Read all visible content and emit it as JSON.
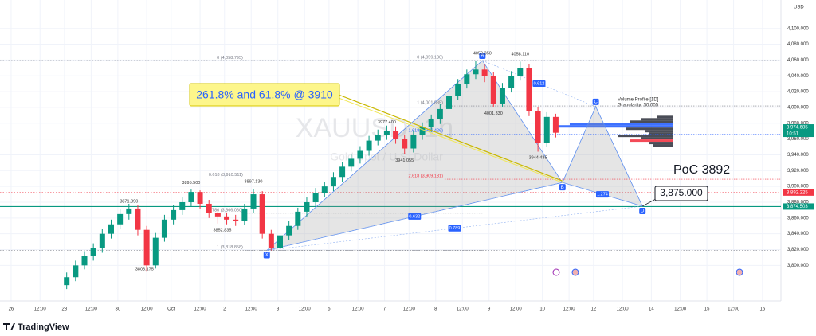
{
  "header": {
    "currency": "USD",
    "brand": "TradingView",
    "watermark_symbol": "XAUUSD, 1h",
    "watermark_name": "Gold Spot / U.S. Dollar"
  },
  "chart_data": {
    "type": "candlestick",
    "grid": true,
    "up_color": "#089981",
    "down_color": "#f23645",
    "xlim": [
      0,
      351.3
    ],
    "ylim": [
      3755,
      4136
    ],
    "xticks": [
      {
        "value": 5,
        "label": "26"
      },
      {
        "value": 18,
        "label": "12:00"
      },
      {
        "value": 29,
        "label": "28"
      },
      {
        "value": 41,
        "label": "12:00"
      },
      {
        "value": 53,
        "label": "30"
      },
      {
        "value": 66,
        "label": "12:00"
      },
      {
        "value": 77,
        "label": "Oct"
      },
      {
        "value": 90,
        "label": "12:00"
      },
      {
        "value": 101,
        "label": "2"
      },
      {
        "value": 113,
        "label": "12:00"
      },
      {
        "value": 125,
        "label": "3"
      },
      {
        "value": 137,
        "label": "12:00"
      },
      {
        "value": 148,
        "label": "5"
      },
      {
        "value": 161,
        "label": "12:00"
      },
      {
        "value": 173,
        "label": "7"
      },
      {
        "value": 184,
        "label": "12:00"
      },
      {
        "value": 196,
        "label": "8"
      },
      {
        "value": 208,
        "label": "12:00"
      },
      {
        "value": 220,
        "label": "9"
      },
      {
        "value": 232,
        "label": "12:00"
      },
      {
        "value": 244,
        "label": "10"
      },
      {
        "value": 256,
        "label": "12:00"
      },
      {
        "value": 267,
        "label": "12"
      },
      {
        "value": 280,
        "label": "12:00"
      },
      {
        "value": 293,
        "label": "14"
      },
      {
        "value": 306,
        "label": "12:00"
      },
      {
        "value": 318,
        "label": "15"
      },
      {
        "value": 330,
        "label": "12:00"
      },
      {
        "value": 343,
        "label": "16"
      }
    ],
    "yticks": [
      {
        "value": 3800,
        "label": "3,800.000"
      },
      {
        "value": 3820,
        "label": "3,820.000"
      },
      {
        "value": 3840,
        "label": "3,840.000"
      },
      {
        "value": 3860,
        "label": "3,860.000"
      },
      {
        "value": 3880,
        "label": "3,880.000"
      },
      {
        "value": 3900,
        "label": "3,900.000"
      },
      {
        "value": 3920,
        "label": "3,920.000"
      },
      {
        "value": 3940,
        "label": "3,940.000"
      },
      {
        "value": 3960,
        "label": "3,960.000"
      },
      {
        "value": 3980,
        "label": "3,980.000"
      },
      {
        "value": 4000,
        "label": "4,000.000"
      },
      {
        "value": 4020,
        "label": "4,020.000"
      },
      {
        "value": 4040,
        "label": "4,040.000"
      },
      {
        "value": 4060,
        "label": "4,060.000"
      },
      {
        "value": 4080,
        "label": "4,080.000"
      },
      {
        "value": 4100,
        "label": "4,100.000"
      }
    ],
    "x": [
      30,
      34,
      38,
      42,
      46,
      50,
      54,
      58,
      62,
      66,
      70,
      74,
      78,
      82,
      86,
      90,
      94,
      98,
      102,
      106,
      110,
      114,
      118,
      122,
      126,
      130,
      134,
      138,
      142,
      146,
      150,
      154,
      158,
      162,
      166,
      170,
      174,
      178,
      182,
      186,
      190,
      194,
      198,
      202,
      206,
      210,
      214,
      218,
      222,
      226,
      230,
      234,
      238,
      242,
      246,
      250
    ],
    "open": [
      3775,
      3785,
      3800,
      3812,
      3822,
      3840,
      3852,
      3865,
      3872,
      3845,
      3800,
      3835,
      3858,
      3870,
      3880,
      3893,
      3878,
      3866,
      3862,
      3858,
      3856,
      3872,
      3890,
      3840,
      3822,
      3838,
      3850,
      3868,
      3880,
      3892,
      3900,
      3912,
      3925,
      3935,
      3945,
      3958,
      3965,
      3970,
      3960,
      3948,
      3965,
      3975,
      3985,
      3998,
      4015,
      4030,
      4042,
      4048,
      4040,
      4005,
      4025,
      4040,
      4050,
      3995,
      3955,
      3988
    ],
    "high": [
      3791,
      3806,
      3818,
      3828,
      3846,
      3858,
      3871,
      3878,
      3876,
      3850,
      3841,
      3864,
      3876,
      3886,
      3896,
      3895,
      3883,
      3872,
      3867,
      3864,
      3878,
      3897,
      3894,
      3845,
      3844,
      3856,
      3873,
      3886,
      3898,
      3906,
      3918,
      3931,
      3941,
      3951,
      3964,
      3972,
      3977,
      3976,
      3965,
      3971,
      3981,
      3991,
      4004,
      4021,
      4036,
      4048,
      4059,
      4054,
      4045,
      4031,
      4046,
      4058,
      4055,
      4000,
      3994,
      3992
    ],
    "low": [
      3770,
      3780,
      3795,
      3806,
      3816,
      3834,
      3846,
      3858,
      3838,
      3793,
      3796,
      3830,
      3852,
      3864,
      3875,
      3872,
      3860,
      3853,
      3852,
      3850,
      3851,
      3866,
      3834,
      3819,
      3819,
      3832,
      3845,
      3862,
      3874,
      3886,
      3894,
      3906,
      3919,
      3929,
      3939,
      3952,
      3959,
      3954,
      3941,
      3943,
      3959,
      3969,
      3979,
      3992,
      4009,
      4024,
      4036,
      4032,
      4001,
      4001,
      4019,
      4034,
      3989,
      3944,
      3950,
      3962
    ],
    "close": [
      3785,
      3800,
      3812,
      3822,
      3840,
      3852,
      3865,
      3872,
      3845,
      3800,
      3835,
      3858,
      3870,
      3880,
      3893,
      3878,
      3866,
      3862,
      3858,
      3856,
      3872,
      3890,
      3840,
      3822,
      3838,
      3850,
      3868,
      3880,
      3892,
      3900,
      3912,
      3925,
      3935,
      3945,
      3958,
      3965,
      3970,
      3960,
      3948,
      3965,
      3975,
      3985,
      3998,
      4015,
      4030,
      4042,
      4048,
      4040,
      4005,
      4025,
      4040,
      4050,
      3995,
      3955,
      3988,
      3968
    ],
    "levels": [
      {
        "value": 4059.35,
        "color": "#9598a1"
      },
      {
        "value": 3892.225,
        "color": "#f23645"
      },
      {
        "value": 3874.503,
        "color": "#089981"
      },
      {
        "value": 3818.858,
        "color": "#9598a1"
      }
    ],
    "fib_left": [
      {
        "label": "0 (4,058.795)",
        "value": 4058.795
      },
      {
        "label": "0.618 (3,910.511)",
        "value": 3910.511
      },
      {
        "label": "0.786 (3,866.060)",
        "value": 3866.06
      },
      {
        "label": "1 (3,818.858)",
        "value": 3818.858
      }
    ],
    "fib_right": [
      {
        "label": "0 (4,059.130)",
        "value": 4059.13
      },
      {
        "label": "1 (4,001.835)",
        "value": 4001.835
      },
      {
        "label": "1.618 (3,966.426)",
        "value": 3966.426
      },
      {
        "label": "2.618 (3,909.131)",
        "value": 3909.131
      }
    ],
    "pattern": {
      "labels": [
        "X",
        "A",
        "B",
        "C",
        "D"
      ],
      "x": [
        120,
        217,
        253,
        268,
        289
      ],
      "prices": [
        3819,
        4059.35,
        3905,
        4001,
        3875
      ],
      "ratios": [
        0.612,
        0.632,
        1.274,
        0.789
      ]
    },
    "price_labels": [
      {
        "label": "4059.350",
        "x": 217,
        "price": 4059.35
      },
      {
        "label": "4058.110",
        "x": 234,
        "price": 4058.11
      },
      {
        "label": "4001.330",
        "x": 222,
        "price": 4001.33
      },
      {
        "label": "3941.055",
        "x": 182,
        "price": 3941.055
      },
      {
        "label": "3944.435",
        "x": 242,
        "price": 3944.435
      },
      {
        "label": "3977.400",
        "x": 174,
        "price": 3977.4
      },
      {
        "label": "3895.500",
        "x": 86,
        "price": 3895.5
      },
      {
        "label": "3897.130",
        "x": 114,
        "price": 3897.13
      },
      {
        "label": "3871.890",
        "x": 58,
        "price": 3871.89
      },
      {
        "label": "3852.835",
        "x": 100,
        "price": 3852.835
      },
      {
        "label": "3803.175",
        "x": 65,
        "price": 3803.175
      }
    ],
    "volume_profile": {
      "title": "Volume Profile [1D]",
      "granularity": "Granularity: $0.005",
      "prices": [
        3988,
        3985,
        3982,
        3979,
        3976,
        3973,
        3970,
        3967,
        3964,
        3961,
        3958,
        3955,
        3952
      ],
      "volumes": [
        20,
        40,
        55,
        130,
        145,
        60,
        35,
        30,
        70,
        40,
        55,
        30,
        25
      ],
      "colors": [
        "#363a45",
        "#363a45",
        "#363a45",
        "#2962ff",
        "#2962ff",
        "#363a45",
        "#363a45",
        "#363a45",
        "#363a45",
        "#363a45",
        "#f23645",
        "#363a45",
        "#363a45"
      ]
    },
    "annotations": {
      "callout": "261.8% and 61.8% @ 3910",
      "poc": "PoC 3892",
      "target": "3,875.000"
    },
    "price_badges": [
      {
        "label": "3,974.685",
        "value": 3974.685,
        "color": "#089981"
      },
      {
        "label": "3,892.225",
        "value": 3892.225,
        "color": "#f23645"
      },
      {
        "label": "3,874.503",
        "value": 3874.503,
        "color": "#089981"
      }
    ],
    "countdown": "10:51"
  }
}
